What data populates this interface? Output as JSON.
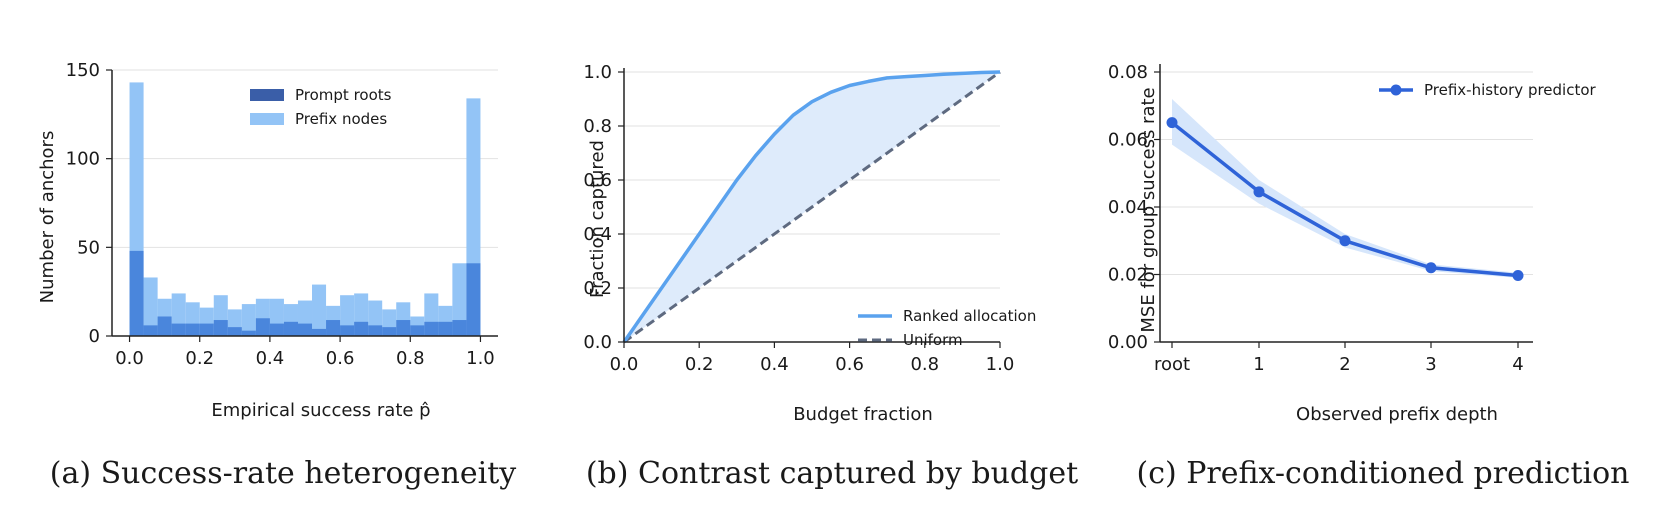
{
  "colors": {
    "dark_blue": "#3a5ea8",
    "light_blue": "#93c4f6",
    "overlap_blue": "#4a86dc",
    "ranked_line": "#5aa2ee",
    "ranked_fill": "#deebfb",
    "uniform_line": "#5e6a80",
    "pred_line": "#2f63d8",
    "pred_band": "#d6e6fb",
    "grid": "#e2e2e2",
    "axis": "#222222"
  },
  "chart_data": [
    {
      "type": "bar",
      "caption": "(a) Success-rate heterogeneity",
      "xlabel": "Empirical success rate p̂",
      "ylabel": "Number of anchors",
      "xlim": [
        -0.05,
        1.05
      ],
      "ylim": [
        0,
        150
      ],
      "xticks": [
        "0.0",
        "0.2",
        "0.4",
        "0.6",
        "0.8",
        "1.0"
      ],
      "yticks": [
        "0",
        "50",
        "100",
        "150"
      ],
      "grid": "horizontal",
      "legend_position": "top-center",
      "bin_edges": [
        0.0,
        0.04,
        0.08,
        0.12,
        0.16,
        0.2,
        0.24,
        0.28,
        0.32,
        0.36,
        0.4,
        0.44,
        0.48,
        0.52,
        0.56,
        0.6,
        0.64,
        0.68,
        0.72,
        0.76,
        0.8,
        0.84,
        0.88,
        0.92,
        0.96,
        1.0
      ],
      "series": [
        {
          "name": "Prompt roots",
          "values": [
            48,
            6,
            11,
            7,
            7,
            7,
            9,
            5,
            3,
            10,
            7,
            8,
            7,
            4,
            9,
            6,
            8,
            6,
            5,
            9,
            6,
            8,
            8,
            9,
            41
          ]
        },
        {
          "name": "Prefix nodes",
          "values": [
            143,
            33,
            21,
            24,
            19,
            16,
            23,
            15,
            18,
            21,
            21,
            18,
            20,
            29,
            17,
            23,
            24,
            20,
            15,
            19,
            11,
            24,
            17,
            41,
            134
          ]
        }
      ]
    },
    {
      "type": "line",
      "caption": "(b) Contrast captured by budget",
      "xlabel": "Budget fraction",
      "ylabel": "Fraction captured",
      "xlim": [
        0,
        1
      ],
      "ylim": [
        0,
        1
      ],
      "xticks": [
        "0.0",
        "0.2",
        "0.4",
        "0.6",
        "0.8",
        "1.0"
      ],
      "yticks": [
        "0.0",
        "0.2",
        "0.4",
        "0.6",
        "0.8",
        "1.0"
      ],
      "grid": "horizontal",
      "legend_position": "bottom-right",
      "series": [
        {
          "name": "Ranked allocation",
          "x": [
            0,
            0.05,
            0.1,
            0.15,
            0.2,
            0.25,
            0.3,
            0.35,
            0.4,
            0.45,
            0.5,
            0.55,
            0.6,
            0.65,
            0.7,
            0.75,
            0.8,
            0.85,
            0.9,
            0.95,
            1.0
          ],
          "y": [
            0,
            0.1,
            0.2,
            0.3,
            0.4,
            0.5,
            0.6,
            0.69,
            0.77,
            0.84,
            0.89,
            0.925,
            0.95,
            0.965,
            0.978,
            0.983,
            0.987,
            0.992,
            0.995,
            0.998,
            1.0
          ]
        },
        {
          "name": "Uniform",
          "x": [
            0,
            1
          ],
          "y": [
            0,
            1
          ]
        }
      ]
    },
    {
      "type": "line",
      "caption": "(c) Prefix-conditioned prediction",
      "xlabel": "Observed prefix depth",
      "ylabel": "MSE for group success rate",
      "categories": [
        "root",
        "1",
        "2",
        "3",
        "4"
      ],
      "ylim": [
        0,
        0.08
      ],
      "yticks": [
        "0.00",
        "0.02",
        "0.04",
        "0.06",
        "0.08"
      ],
      "grid": "horizontal",
      "legend_position": "top-right",
      "series": [
        {
          "name": "Prefix-history predictor",
          "values": [
            0.065,
            0.0445,
            0.03,
            0.022,
            0.0197
          ],
          "lower": [
            0.0585,
            0.041,
            0.028,
            0.021,
            0.019
          ],
          "upper": [
            0.072,
            0.048,
            0.032,
            0.023,
            0.0205
          ]
        }
      ]
    }
  ]
}
